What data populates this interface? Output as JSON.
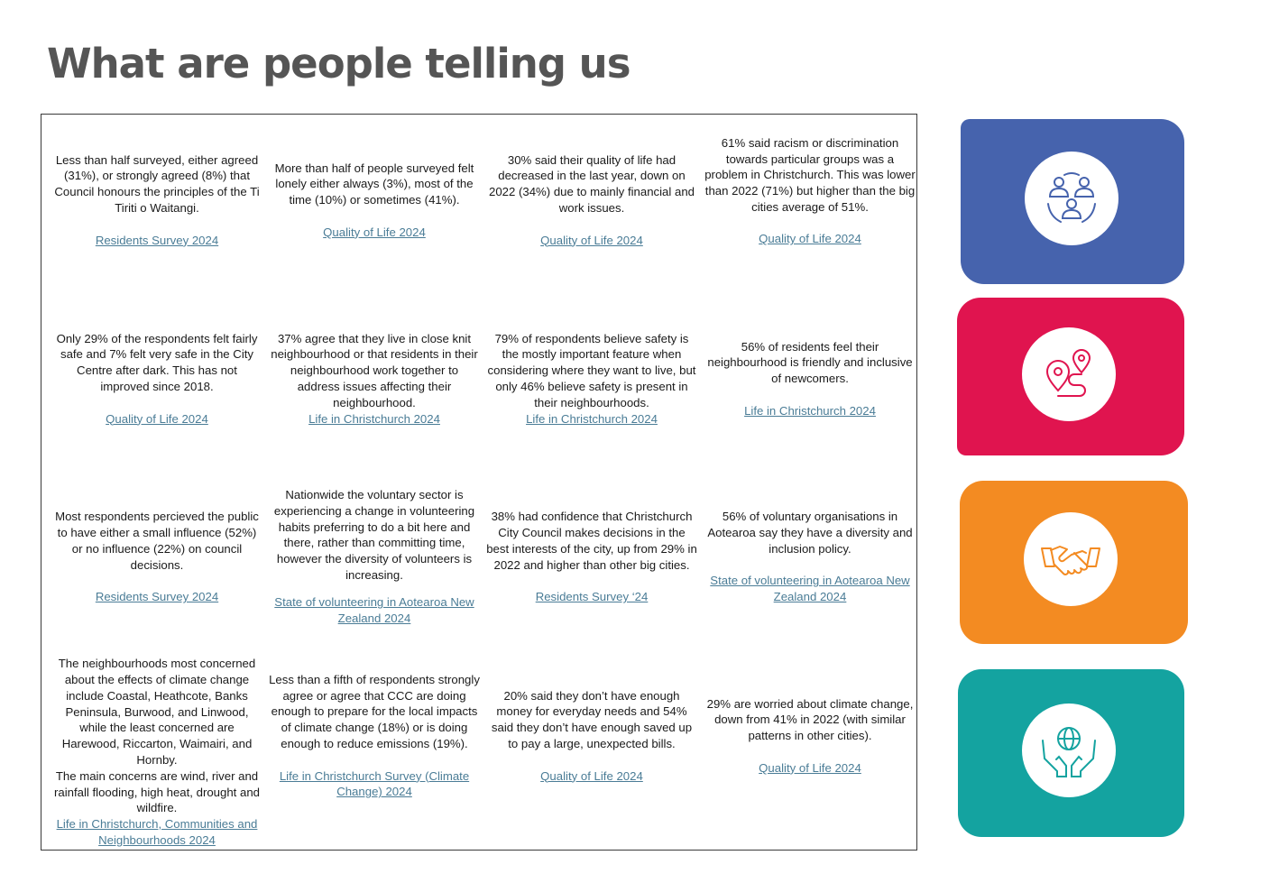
{
  "page": {
    "title": "What are people telling us"
  },
  "rows": [
    [
      {
        "text": "Less than half surveyed, either  agreed (31%), or  strongly agreed (8%) that Council honours the principles of the Ti Tiriti o Waitangi.",
        "source": "Residents Survey 2024",
        "gap": true
      },
      {
        "text": "More than half of people surveyed felt lonely either always (3%), most of the time (10%) or sometimes (41%).",
        "source": "Quality of Life 2024",
        "gap": true
      },
      {
        "text": "30% said their quality of life had decreased in the last year, down on 2022 (34%) due to mainly financial and work issues.",
        "source": "Quality of Life 2024",
        "gap": true
      },
      {
        "text": "61% said racism or discrimination towards particular groups was a problem in Christchurch. This was lower than 2022 (71%) but higher than the big cities average of 51%.",
        "source": "Quality of Life 2024",
        "gap": true
      }
    ],
    [
      {
        "text": "Only 29% of the respondents felt fairly safe and 7% felt very safe in the City Centre after dark. This has not improved since 2018.",
        "source": "Quality of Life 2024",
        "gap": true
      },
      {
        "text": "37% agree that they live in close knit neighbourhood or that residents in their neighbourhood work together to address issues affecting their neighbourhood.",
        "source": "Life in Christchurch 2024",
        "gap": false
      },
      {
        "text": "79% of respondents believe safety is the mostly important feature when considering where they want to live, but only 46% believe safety is present in their neighbourhoods.",
        "source": "Life in Christchurch 2024",
        "gap": false
      },
      {
        "text": "56% of residents feel their neighbourhood is friendly and inclusive of newcomers.",
        "source": "Life in Christchurch 2024",
        "gap": true
      }
    ],
    [
      {
        "text": "Most respondents percieved the public to have either a small influence (52%) or no influence (22%) on council decisions.",
        "source": "Residents Survey 2024",
        "gap": true
      },
      {
        "text": "Nationwide the voluntary sector is experiencing a change in volunteering habits preferring to do a bit here and there, rather than committing time, however the diversity of volunteers is increasing.",
        "source": "State of volunteering in Aotearoa New Zealand 2024",
        "gap": true
      },
      {
        "text": "38% had confidence that Christchurch City Council makes decisions in the best interests of the city, up from 29% in 2022 and higher than other big cities.",
        "source": "Residents Survey ‘24",
        "gap": true
      },
      {
        "text": "56% of voluntary organisations in Aotearoa say they have a diversity and inclusion policy.",
        "source": "State of volunteering in Aotearoa New Zealand 2024",
        "gap": true
      }
    ],
    [
      {
        "text": "The neighbourhoods most concerned about the effects of climate change include Coastal, Heathcote, Banks Peninsula, Burwood, and Linwood, while the least concerned are Harewood, Riccarton, Waimairi, and Hornby.\nThe main concerns are wind, river and rainfall flooding, high heat, drought and wildfire.",
        "source": "Life in Christchurch, Communities and Neighbourhoods 2024",
        "gap": false
      },
      {
        "text": "Less than a fifth of respondents strongly agree or agree that CCC are doing enough to prepare for the local impacts of climate change (18%) or is doing enough to reduce emissions (19%).",
        "source": "Life in Christchurch Survey (Climate Change) 2024",
        "gap": true
      },
      {
        "text": "20% said they don’t have enough money for everyday needs and 54% said they don’t have enough saved up to pay a large, unexpected bills.",
        "source": "Quality of Life 2024",
        "gap": true
      },
      {
        "text": "29% are worried about climate change, down from 41% in 2022 (with similar patterns in other cities).",
        "source": "Quality of Life 2024",
        "gap": true
      }
    ]
  ],
  "tiles": [
    {
      "color": "#4663ad",
      "icon": "people-group-icon",
      "icon_color": "#4663ad"
    },
    {
      "color": "#e0144f",
      "icon": "route-pins-icon",
      "icon_color": "#e0144f"
    },
    {
      "color": "#f38b22",
      "icon": "handshake-icon",
      "icon_color": "#f38b22"
    },
    {
      "color": "#14a3a0",
      "icon": "hands-globe-icon",
      "icon_color": "#14a3a0"
    }
  ]
}
